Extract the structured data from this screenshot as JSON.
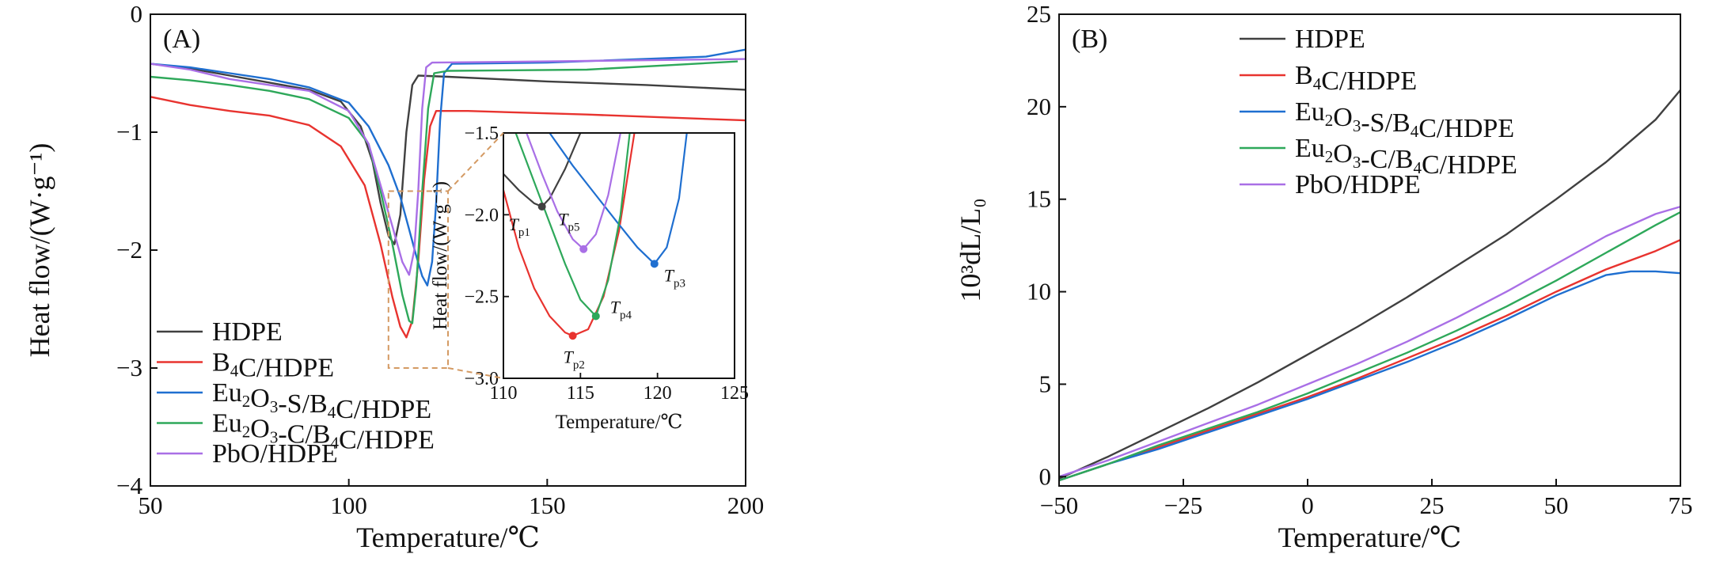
{
  "chart_data": [
    {
      "type": "line",
      "panel_label": "(A)",
      "xlabel": "Temperature/℃",
      "ylabel": "Heat flow/(W·g⁻¹)",
      "xlim": [
        50,
        200
      ],
      "ylim": [
        -4,
        0
      ],
      "x_ticks": [
        "50",
        "100",
        "150",
        "200"
      ],
      "y_ticks": [
        "0",
        "−1",
        "−2",
        "−3",
        "−4"
      ],
      "legend_position": "bottom-left",
      "series": [
        {
          "name": "HDPE",
          "color": "#404040",
          "points": [
            [
              50,
              -0.42
            ],
            [
              60,
              -0.46
            ],
            [
              70,
              -0.52
            ],
            [
              80,
              -0.58
            ],
            [
              90,
              -0.64
            ],
            [
              98,
              -0.74
            ],
            [
              103,
              -0.95
            ],
            [
              106,
              -1.25
            ],
            [
              108,
              -1.6
            ],
            [
              110,
              -1.88
            ],
            [
              111.5,
              -1.95
            ],
            [
              113,
              -1.7
            ],
            [
              114.5,
              -1.0
            ],
            [
              116,
              -0.6
            ],
            [
              117.5,
              -0.52
            ],
            [
              125,
              -0.53
            ],
            [
              150,
              -0.57
            ],
            [
              175,
              -0.6
            ],
            [
              200,
              -0.64
            ]
          ]
        },
        {
          "name": "B₄C/HDPE",
          "color": "#e8332f",
          "points": [
            [
              50,
              -0.7
            ],
            [
              60,
              -0.77
            ],
            [
              70,
              -0.82
            ],
            [
              80,
              -0.86
            ],
            [
              90,
              -0.94
            ],
            [
              98,
              -1.12
            ],
            [
              104,
              -1.45
            ],
            [
              108,
              -1.95
            ],
            [
              111,
              -2.4
            ],
            [
              113,
              -2.65
            ],
            [
              114.5,
              -2.74
            ],
            [
              116,
              -2.6
            ],
            [
              117.5,
              -2.1
            ],
            [
              119,
              -1.4
            ],
            [
              120.5,
              -0.95
            ],
            [
              122,
              -0.82
            ],
            [
              130,
              -0.82
            ],
            [
              160,
              -0.85
            ],
            [
              200,
              -0.9
            ]
          ]
        },
        {
          "name": "Eu₂O₃-S/B₄C/HDPE",
          "color": "#1f6fd0",
          "points": [
            [
              50,
              -0.42
            ],
            [
              60,
              -0.45
            ],
            [
              70,
              -0.5
            ],
            [
              80,
              -0.55
            ],
            [
              90,
              -0.62
            ],
            [
              100,
              -0.75
            ],
            [
              105,
              -0.95
            ],
            [
              110,
              -1.28
            ],
            [
              113,
              -1.55
            ],
            [
              115,
              -1.8
            ],
            [
              117,
              -2.05
            ],
            [
              118.5,
              -2.22
            ],
            [
              119.8,
              -2.3
            ],
            [
              121,
              -2.1
            ],
            [
              122,
              -1.6
            ],
            [
              123,
              -0.9
            ],
            [
              124,
              -0.5
            ],
            [
              126,
              -0.42
            ],
            [
              150,
              -0.41
            ],
            [
              190,
              -0.36
            ],
            [
              200,
              -0.3
            ]
          ]
        },
        {
          "name": "Eu₂O₃-C/B₄C/HDPE",
          "color": "#2ea85a",
          "points": [
            [
              50,
              -0.53
            ],
            [
              60,
              -0.56
            ],
            [
              70,
              -0.6
            ],
            [
              80,
              -0.65
            ],
            [
              90,
              -0.72
            ],
            [
              100,
              -0.88
            ],
            [
              105,
              -1.1
            ],
            [
              108,
              -1.5
            ],
            [
              111,
              -1.95
            ],
            [
              113.5,
              -2.38
            ],
            [
              115.2,
              -2.6
            ],
            [
              116,
              -2.62
            ],
            [
              117,
              -2.3
            ],
            [
              118.5,
              -1.5
            ],
            [
              120,
              -0.8
            ],
            [
              121.5,
              -0.5
            ],
            [
              125,
              -0.48
            ],
            [
              160,
              -0.47
            ],
            [
              198,
              -0.4
            ]
          ]
        },
        {
          "name": "PbO/HDPE",
          "color": "#a96fe6",
          "points": [
            [
              50,
              -0.42
            ],
            [
              60,
              -0.47
            ],
            [
              70,
              -0.55
            ],
            [
              80,
              -0.6
            ],
            [
              90,
              -0.65
            ],
            [
              100,
              -0.82
            ],
            [
              105,
              -1.1
            ],
            [
              108,
              -1.45
            ],
            [
              111,
              -1.8
            ],
            [
              113.5,
              -2.1
            ],
            [
              115.2,
              -2.21
            ],
            [
              116.5,
              -2.0
            ],
            [
              117.5,
              -1.5
            ],
            [
              118.5,
              -0.8
            ],
            [
              119.5,
              -0.45
            ],
            [
              121,
              -0.41
            ],
            [
              150,
              -0.4
            ],
            [
              200,
              -0.38
            ]
          ]
        }
      ],
      "inset": {
        "xlabel": "Temperature/℃",
        "ylabel": "Heat flow/(W·g⁻¹)",
        "xlim": [
          110,
          125
        ],
        "ylim": [
          -3.0,
          -1.5
        ],
        "x_ticks": [
          "110",
          "115",
          "120",
          "125"
        ],
        "y_ticks": [
          "−1.5",
          "−2.0",
          "−2.5",
          "−3.0"
        ],
        "peaks": [
          {
            "label": "T",
            "sub": "p1",
            "x": 112.5,
            "y": -1.95,
            "color": "#404040"
          },
          {
            "label": "T",
            "sub": "p2",
            "x": 114.5,
            "y": -2.74,
            "color": "#e8332f"
          },
          {
            "label": "T",
            "sub": "p3",
            "x": 119.8,
            "y": -2.3,
            "color": "#1f6fd0"
          },
          {
            "label": "T",
            "sub": "p4",
            "x": 116.0,
            "y": -2.62,
            "color": "#2ea85a"
          },
          {
            "label": "T",
            "sub": "p5",
            "x": 115.2,
            "y": -2.21,
            "color": "#a96fe6"
          }
        ],
        "series": [
          {
            "color": "#404040",
            "points": [
              [
                110,
                -1.75
              ],
              [
                111,
                -1.85
              ],
              [
                112,
                -1.93
              ],
              [
                112.5,
                -1.95
              ],
              [
                113,
                -1.9
              ],
              [
                114,
                -1.72
              ],
              [
                115,
                -1.5
              ]
            ]
          },
          {
            "color": "#e8332f",
            "points": [
              [
                110,
                -1.85
              ],
              [
                111,
                -2.2
              ],
              [
                112,
                -2.45
              ],
              [
                113,
                -2.62
              ],
              [
                114,
                -2.72
              ],
              [
                114.5,
                -2.74
              ],
              [
                115.5,
                -2.7
              ],
              [
                116.5,
                -2.5
              ],
              [
                117.5,
                -2.1
              ],
              [
                118.5,
                -1.5
              ]
            ]
          },
          {
            "color": "#1f6fd0",
            "points": [
              [
                113,
                -1.5
              ],
              [
                114.5,
                -1.7
              ],
              [
                116,
                -1.88
              ],
              [
                117.5,
                -2.06
              ],
              [
                118.7,
                -2.2
              ],
              [
                119.8,
                -2.3
              ],
              [
                120.6,
                -2.2
              ],
              [
                121.4,
                -1.9
              ],
              [
                121.9,
                -1.5
              ]
            ]
          },
          {
            "color": "#2ea85a",
            "points": [
              [
                110.8,
                -1.5
              ],
              [
                112,
                -1.8
              ],
              [
                113,
                -2.05
              ],
              [
                114,
                -2.3
              ],
              [
                115,
                -2.52
              ],
              [
                116,
                -2.62
              ],
              [
                116.8,
                -2.4
              ],
              [
                117.6,
                -2.0
              ],
              [
                118.2,
                -1.5
              ]
            ]
          },
          {
            "color": "#a96fe6",
            "points": [
              [
                111.5,
                -1.5
              ],
              [
                112.5,
                -1.75
              ],
              [
                113.5,
                -1.98
              ],
              [
                114.5,
                -2.15
              ],
              [
                115.2,
                -2.21
              ],
              [
                116,
                -2.12
              ],
              [
                116.8,
                -1.88
              ],
              [
                117.6,
                -1.5
              ]
            ]
          }
        ]
      }
    },
    {
      "type": "line",
      "panel_label": "(B)",
      "xlabel": "Temperature/℃",
      "ylabel": "10³dL/L₀",
      "xlim": [
        -50,
        75
      ],
      "ylim": [
        -0.5,
        25
      ],
      "x_ticks": [
        "−50",
        "−25",
        "0",
        "25",
        "50",
        "75"
      ],
      "y_ticks": [
        "0",
        "5",
        "10",
        "15",
        "20",
        "25"
      ],
      "legend_position": "top-left",
      "series": [
        {
          "name": "HDPE",
          "color": "#404040",
          "points": [
            [
              -50,
              -0.1
            ],
            [
              -40,
              1.1
            ],
            [
              -30,
              2.4
            ],
            [
              -20,
              3.7
            ],
            [
              -10,
              5.1
            ],
            [
              0,
              6.6
            ],
            [
              10,
              8.1
            ],
            [
              20,
              9.7
            ],
            [
              30,
              11.4
            ],
            [
              40,
              13.1
            ],
            [
              50,
              15.0
            ],
            [
              60,
              17.0
            ],
            [
              70,
              19.3
            ],
            [
              75,
              20.9
            ]
          ]
        },
        {
          "name": "B₄C/HDPE",
          "color": "#e8332f",
          "points": [
            [
              -50,
              -0.2
            ],
            [
              -40,
              0.7
            ],
            [
              -30,
              1.6
            ],
            [
              -20,
              2.5
            ],
            [
              -10,
              3.4
            ],
            [
              0,
              4.3
            ],
            [
              10,
              5.3
            ],
            [
              20,
              6.4
            ],
            [
              30,
              7.5
            ],
            [
              40,
              8.7
            ],
            [
              50,
              10.0
            ],
            [
              60,
              11.2
            ],
            [
              70,
              12.2
            ],
            [
              75,
              12.8
            ]
          ]
        },
        {
          "name": "Eu₂O₃-S/B₄C/HDPE",
          "color": "#1f6fd0",
          "points": [
            [
              -50,
              -0.2
            ],
            [
              -40,
              0.7
            ],
            [
              -30,
              1.5
            ],
            [
              -20,
              2.4
            ],
            [
              -10,
              3.3
            ],
            [
              0,
              4.2
            ],
            [
              10,
              5.2
            ],
            [
              20,
              6.2
            ],
            [
              30,
              7.3
            ],
            [
              40,
              8.5
            ],
            [
              50,
              9.8
            ],
            [
              60,
              10.9
            ],
            [
              65,
              11.1
            ],
            [
              70,
              11.1
            ],
            [
              75,
              11.0
            ]
          ]
        },
        {
          "name": "Eu₂O₃-C/B₄C/HDPE",
          "color": "#2ea85a",
          "points": [
            [
              -50,
              -0.2
            ],
            [
              -40,
              0.7
            ],
            [
              -30,
              1.7
            ],
            [
              -20,
              2.6
            ],
            [
              -10,
              3.5
            ],
            [
              0,
              4.5
            ],
            [
              10,
              5.6
            ],
            [
              20,
              6.7
            ],
            [
              30,
              7.9
            ],
            [
              40,
              9.2
            ],
            [
              50,
              10.6
            ],
            [
              60,
              12.1
            ],
            [
              70,
              13.6
            ],
            [
              75,
              14.3
            ]
          ]
        },
        {
          "name": "PbO/HDPE",
          "color": "#a96fe6",
          "points": [
            [
              -50,
              0.0
            ],
            [
              -40,
              0.9
            ],
            [
              -30,
              1.9
            ],
            [
              -20,
              2.9
            ],
            [
              -10,
              3.9
            ],
            [
              0,
              5.0
            ],
            [
              10,
              6.1
            ],
            [
              20,
              7.3
            ],
            [
              30,
              8.6
            ],
            [
              40,
              10.0
            ],
            [
              50,
              11.5
            ],
            [
              60,
              13.0
            ],
            [
              70,
              14.2
            ],
            [
              75,
              14.6
            ]
          ]
        }
      ]
    }
  ]
}
